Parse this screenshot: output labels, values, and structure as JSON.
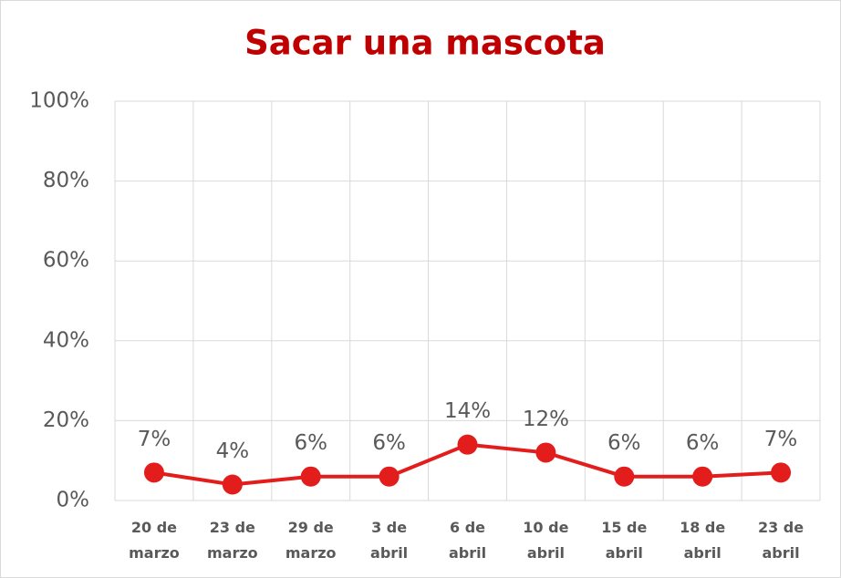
{
  "chart_data": {
    "type": "line",
    "title": "Sacar una mascota",
    "categories": [
      "20 de marzo",
      "23 de marzo",
      "29 de marzo",
      "3 de abril",
      "6 de abril",
      "10 de abril",
      "15 de abril",
      "18 de abril",
      "23 de abril"
    ],
    "series": [
      {
        "name": "Sacar una mascota",
        "color": "#e31c1c",
        "values": [
          7,
          4,
          6,
          6,
          14,
          12,
          6,
          6,
          7
        ],
        "value_labels": [
          "7%",
          "4%",
          "6%",
          "6%",
          "14%",
          "12%",
          "6%",
          "6%",
          "7%"
        ]
      }
    ],
    "ylim": [
      0,
      100
    ],
    "yticks": [
      {
        "value": 0,
        "label": "0%"
      },
      {
        "value": 20,
        "label": "20%"
      },
      {
        "value": 40,
        "label": "40%"
      },
      {
        "value": 60,
        "label": "60%"
      },
      {
        "value": 80,
        "label": "80%"
      },
      {
        "value": 100,
        "label": "100%"
      }
    ],
    "grid": true
  }
}
